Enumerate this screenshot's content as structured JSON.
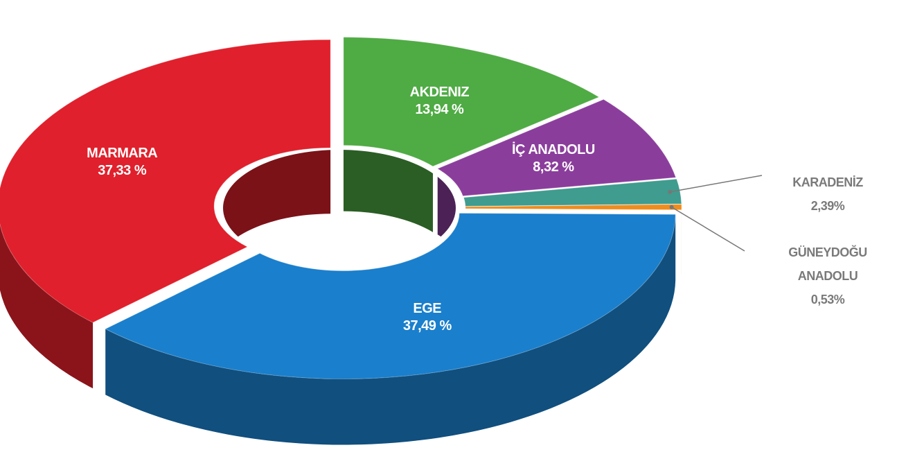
{
  "chart_data": {
    "type": "pie",
    "donut": true,
    "categories": [
      "AKDENIZ",
      "İÇ ANADOLU",
      "KARADENİZ",
      "GÜNEYDOĞU ANADOLU",
      "EGE",
      "MARMARA"
    ],
    "values": [
      13.94,
      8.32,
      2.39,
      0.53,
      37.49,
      37.33
    ],
    "value_labels": [
      "13,94 %",
      "8,32 %",
      "2,39%",
      "0,53%",
      "37,49 %",
      "37,33 %"
    ],
    "colors": [
      "#4fab44",
      "#8b3d9c",
      "#3f9c8e",
      "#f08c1c",
      "#1a7fcc",
      "#e0202c"
    ]
  }
}
